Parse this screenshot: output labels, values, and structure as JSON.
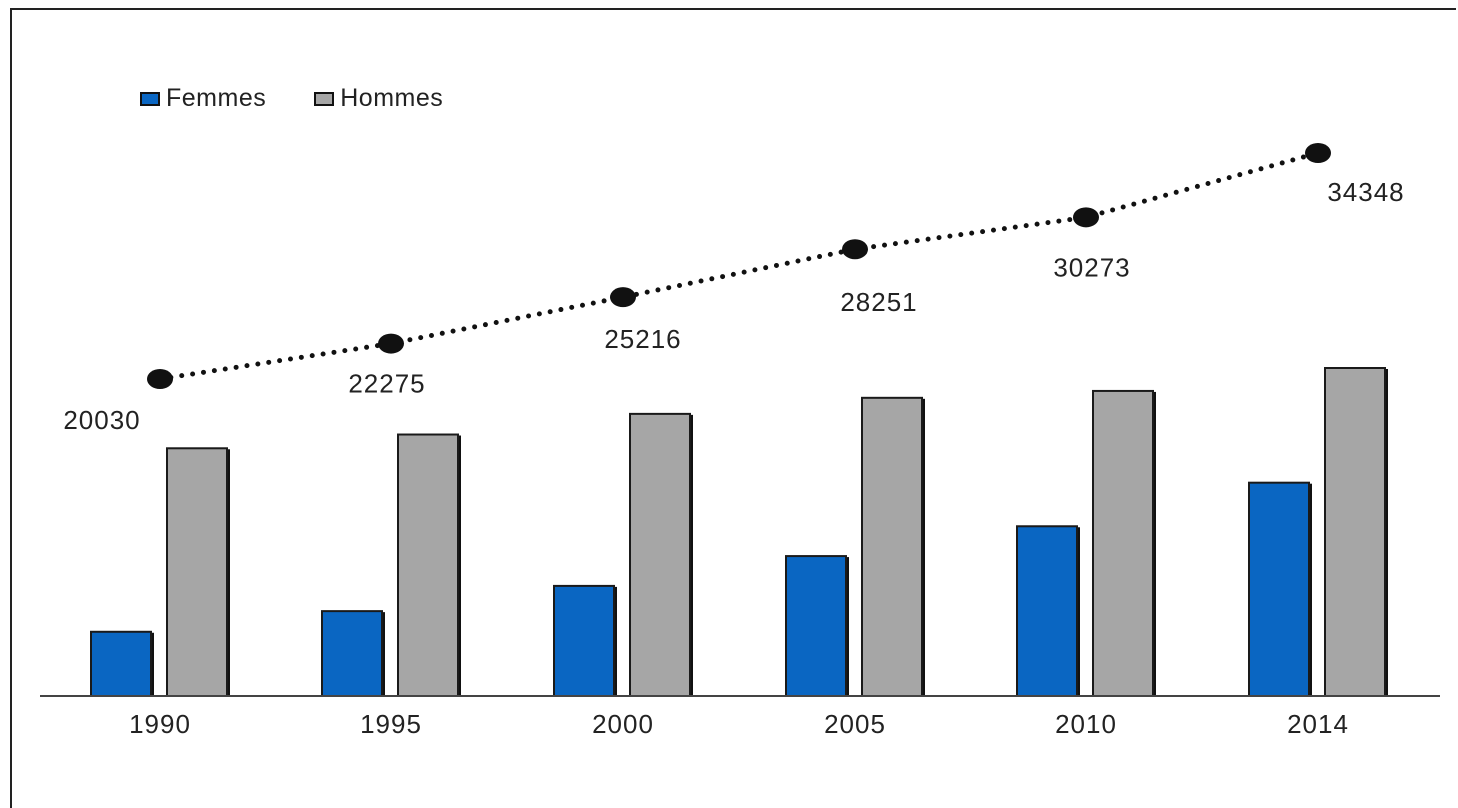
{
  "chart_data": {
    "type": "bar",
    "categories": [
      "1990",
      "1995",
      "2000",
      "2005",
      "2010",
      "2014"
    ],
    "series": [
      {
        "name": "Femmes",
        "kind": "bar",
        "color": "#0a66c2",
        "values": [
          2800,
          3700,
          4800,
          6100,
          7400,
          9300
        ]
      },
      {
        "name": "Hommes",
        "kind": "bar",
        "color": "#a6a6a6",
        "values": [
          10800,
          11400,
          12300,
          13000,
          13300,
          14300
        ]
      },
      {
        "name": "",
        "kind": "line",
        "style": "dotted",
        "color": "#111111",
        "values": [
          20030,
          22275,
          25216,
          28251,
          30273,
          34348
        ],
        "labels": [
          "20030",
          "22275",
          "25216",
          "28251",
          "30273",
          "34348"
        ]
      }
    ],
    "legend": {
      "position": "top-left",
      "entries": [
        "Femmes",
        "Hommes"
      ]
    },
    "title": "",
    "xlabel": "",
    "ylabel": "",
    "grid": false
  }
}
